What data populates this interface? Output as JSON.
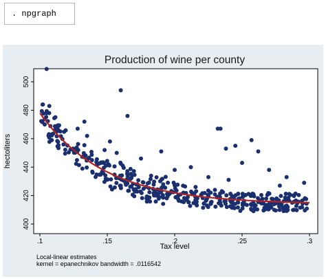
{
  "command": {
    "text": ". npgraph"
  },
  "chart_data": {
    "type": "scatter",
    "title": "Production of wine per county",
    "xlabel": "Tax level",
    "ylabel": "hectoliters",
    "xlim": [
      0.1,
      0.3
    ],
    "ylim": [
      400,
      510
    ],
    "xticks": [
      ".1",
      ".15",
      ".2",
      ".25",
      ".3"
    ],
    "yticks": [
      "400",
      "420",
      "440",
      "460",
      "480",
      "500"
    ],
    "y_tick_values": [
      400,
      420,
      440,
      460,
      480,
      500
    ],
    "x_tick_values": [
      0.1,
      0.15,
      0.2,
      0.25,
      0.3
    ],
    "grid": false,
    "note_line1": "Local-linear estimates",
    "note_line2": "kernel = epanechnikov bandwidth = .0116542",
    "point_color": "#1a2f6e",
    "line_color": "#b22222",
    "outliers": [
      {
        "x": 0.105,
        "y": 509
      },
      {
        "x": 0.102,
        "y": 484
      },
      {
        "x": 0.107,
        "y": 483
      },
      {
        "x": 0.16,
        "y": 494
      },
      {
        "x": 0.165,
        "y": 476
      },
      {
        "x": 0.232,
        "y": 467
      },
      {
        "x": 0.234,
        "y": 467
      },
      {
        "x": 0.257,
        "y": 459
      },
      {
        "x": 0.245,
        "y": 455
      },
      {
        "x": 0.238,
        "y": 453
      },
      {
        "x": 0.19,
        "y": 451
      },
      {
        "x": 0.262,
        "y": 451
      },
      {
        "x": 0.133,
        "y": 472
      },
      {
        "x": 0.128,
        "y": 467
      },
      {
        "x": 0.135,
        "y": 462
      },
      {
        "x": 0.152,
        "y": 458
      },
      {
        "x": 0.148,
        "y": 452
      },
      {
        "x": 0.157,
        "y": 450
      },
      {
        "x": 0.175,
        "y": 446
      },
      {
        "x": 0.212,
        "y": 440
      },
      {
        "x": 0.2,
        "y": 438
      },
      {
        "x": 0.25,
        "y": 443
      },
      {
        "x": 0.27,
        "y": 438
      },
      {
        "x": 0.283,
        "y": 433
      },
      {
        "x": 0.296,
        "y": 429
      },
      {
        "x": 0.278,
        "y": 427
      },
      {
        "x": 0.24,
        "y": 431
      },
      {
        "x": 0.225,
        "y": 433
      }
    ]
  }
}
